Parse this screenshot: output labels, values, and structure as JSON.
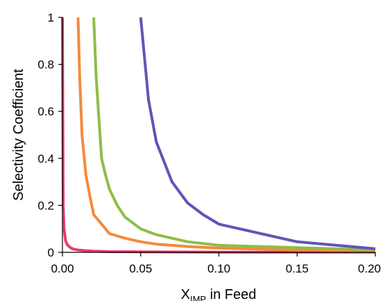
{
  "chart_data": {
    "type": "line",
    "title": "",
    "xlabel": "X",
    "xlabel_subscript": "IMP",
    "xlabel_suffix": " in Feed",
    "ylabel": "Selectivity Coefficient",
    "xlim": [
      0.0,
      0.2
    ],
    "ylim": [
      0,
      1
    ],
    "xticks": [
      0.0,
      0.05,
      0.1,
      0.15,
      0.2
    ],
    "xtick_labels": [
      "0.00",
      "0.05",
      "0.10",
      "0.15",
      "0.20"
    ],
    "yticks": [
      0,
      0.2,
      0.4,
      0.6,
      0.8,
      1
    ],
    "ytick_labels": [
      "0",
      "0.2",
      "0.4",
      "0.6",
      "0.8",
      "1"
    ],
    "grid": false,
    "legend": false,
    "series": [
      {
        "color": "#ee3a6a",
        "x": [
          0.0,
          0.0005,
          0.001,
          0.002,
          0.003,
          0.005,
          0.007,
          0.01,
          0.015,
          0.02,
          0.03,
          0.05,
          0.1,
          0.15,
          0.2
        ],
        "y": [
          1.0,
          0.2,
          0.1,
          0.05,
          0.033,
          0.02,
          0.014,
          0.01,
          0.007,
          0.005,
          0.003,
          0.002,
          0.001,
          0.001,
          0.001
        ]
      },
      {
        "color": "#f58a3c",
        "x": [
          0.01,
          0.011,
          0.0125,
          0.015,
          0.0175,
          0.02,
          0.025,
          0.03,
          0.04,
          0.05,
          0.06,
          0.08,
          0.1,
          0.15,
          0.2
        ],
        "y": [
          1.0,
          0.75,
          0.5,
          0.33,
          0.24,
          0.16,
          0.12,
          0.08,
          0.06,
          0.045,
          0.035,
          0.025,
          0.018,
          0.01,
          0.006
        ]
      },
      {
        "color": "#8dbd48",
        "x": [
          0.02,
          0.0215,
          0.0235,
          0.025,
          0.0275,
          0.03,
          0.035,
          0.04,
          0.05,
          0.06,
          0.07,
          0.08,
          0.1,
          0.15,
          0.2
        ],
        "y": [
          1.0,
          0.75,
          0.55,
          0.4,
          0.33,
          0.27,
          0.2,
          0.15,
          0.1,
          0.075,
          0.06,
          0.045,
          0.03,
          0.02,
          0.01
        ]
      },
      {
        "color": "#6155b5",
        "x": [
          0.05,
          0.052,
          0.055,
          0.06,
          0.07,
          0.08,
          0.09,
          0.1,
          0.12,
          0.15,
          0.2
        ],
        "y": [
          1.0,
          0.86,
          0.65,
          0.47,
          0.3,
          0.21,
          0.16,
          0.12,
          0.09,
          0.045,
          0.015
        ]
      }
    ]
  }
}
